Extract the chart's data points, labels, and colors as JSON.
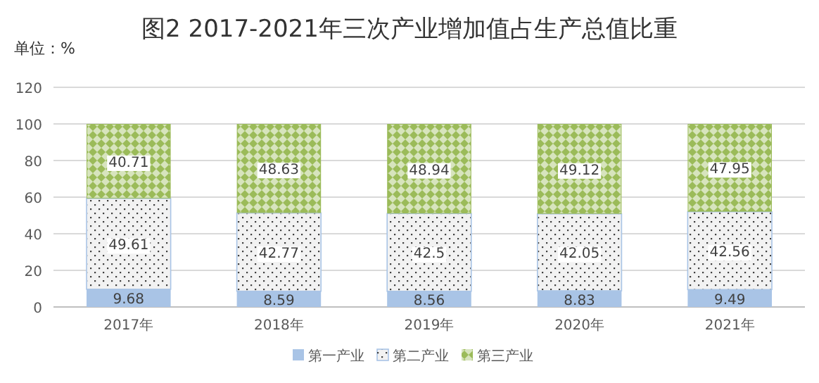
{
  "chart_data": {
    "type": "bar",
    "stacked": true,
    "title": "图2 2017-2021年三次产业增加值占生产总值比重",
    "annotations": [
      "单位：%"
    ],
    "categories": [
      "2017年",
      "2018年",
      "2019年",
      "2020年",
      "2021年"
    ],
    "series": [
      {
        "name": "第一产业",
        "color": "#a9c4e6",
        "values": [
          9.68,
          8.59,
          8.56,
          8.83,
          9.49
        ]
      },
      {
        "name": "第二产业",
        "color": "#f2f2f2",
        "values": [
          49.61,
          42.77,
          42.5,
          42.05,
          42.56
        ]
      },
      {
        "name": "第三产业",
        "color": "#9bbb59",
        "values": [
          40.71,
          48.63,
          48.94,
          49.12,
          47.95
        ]
      }
    ],
    "ylim": [
      0,
      120
    ],
    "yticks": [
      0,
      20,
      40,
      60,
      80,
      100,
      120
    ],
    "grid": "y",
    "legend": "bottom",
    "data_labels": true
  }
}
